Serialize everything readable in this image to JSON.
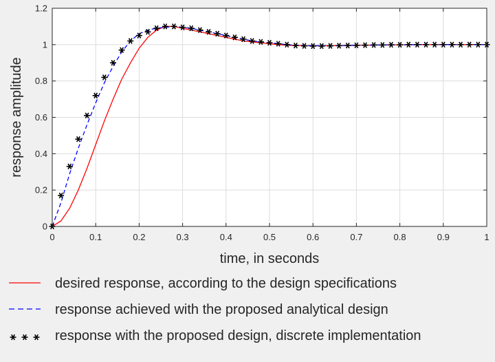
{
  "chart_data": {
    "type": "line",
    "xlabel": "time, in seconds",
    "ylabel": "response amplitude",
    "xlim": [
      0,
      1
    ],
    "ylim": [
      0,
      1.2
    ],
    "xticks": [
      "0",
      "0.1",
      "0.2",
      "0.3",
      "0.4",
      "0.5",
      "0.6",
      "0.7",
      "0.8",
      "0.9",
      "1"
    ],
    "yticks": [
      "0",
      "0.2",
      "0.4",
      "0.6",
      "0.8",
      "1",
      "1.2"
    ],
    "grid": true,
    "legend_position": "below",
    "series": [
      {
        "name": "desired response, according to the design specifications",
        "style": "solid",
        "color": "#ff0000",
        "x": [
          0,
          0.02,
          0.04,
          0.06,
          0.08,
          0.1,
          0.12,
          0.14,
          0.16,
          0.18,
          0.2,
          0.22,
          0.24,
          0.26,
          0.28,
          0.3,
          0.32,
          0.34,
          0.36,
          0.38,
          0.4,
          0.42,
          0.44,
          0.46,
          0.48,
          0.5,
          0.52,
          0.54,
          0.56,
          0.58,
          0.6,
          0.65,
          0.7,
          0.75,
          0.8,
          0.85,
          0.9,
          0.95,
          1.0
        ],
        "y": [
          0,
          0.03,
          0.1,
          0.2,
          0.32,
          0.45,
          0.58,
          0.7,
          0.81,
          0.9,
          0.98,
          1.04,
          1.08,
          1.1,
          1.1,
          1.09,
          1.08,
          1.07,
          1.06,
          1.05,
          1.04,
          1.03,
          1.02,
          1.015,
          1.01,
          1.005,
          1.0,
          0.997,
          0.995,
          0.994,
          0.993,
          0.994,
          0.996,
          0.998,
          0.999,
          1.0,
          1.0,
          1.0,
          1.0
        ]
      },
      {
        "name": "response achieved with the proposed analytical design",
        "style": "dashed",
        "color": "#0000ff",
        "x": [
          0,
          0.02,
          0.04,
          0.06,
          0.08,
          0.1,
          0.12,
          0.14,
          0.16,
          0.18,
          0.2,
          0.22,
          0.24,
          0.26,
          0.28,
          0.3,
          0.32,
          0.34,
          0.36,
          0.38,
          0.4,
          0.42,
          0.44,
          0.46,
          0.48,
          0.5,
          0.52,
          0.54,
          0.56,
          0.58,
          0.6,
          0.65,
          0.7,
          0.75,
          0.8,
          0.85,
          0.9,
          0.95,
          1.0
        ],
        "y": [
          0,
          0.13,
          0.29,
          0.43,
          0.56,
          0.68,
          0.79,
          0.88,
          0.96,
          1.02,
          1.06,
          1.08,
          1.09,
          1.095,
          1.1,
          1.095,
          1.09,
          1.08,
          1.07,
          1.06,
          1.05,
          1.04,
          1.03,
          1.02,
          1.015,
          1.01,
          1.005,
          1.0,
          0.997,
          0.995,
          0.994,
          0.994,
          0.996,
          0.998,
          0.999,
          1.0,
          1.0,
          1.0,
          1.0
        ]
      },
      {
        "name": "response with the proposed design, discrete implementation",
        "style": "markers",
        "color": "#000000",
        "x": [
          0,
          0.02,
          0.04,
          0.06,
          0.08,
          0.1,
          0.12,
          0.14,
          0.16,
          0.18,
          0.2,
          0.22,
          0.24,
          0.26,
          0.28,
          0.3,
          0.32,
          0.34,
          0.36,
          0.38,
          0.4,
          0.42,
          0.44,
          0.46,
          0.48,
          0.5,
          0.52,
          0.54,
          0.56,
          0.58,
          0.6,
          0.62,
          0.64,
          0.66,
          0.68,
          0.7,
          0.72,
          0.74,
          0.76,
          0.78,
          0.8,
          0.82,
          0.84,
          0.86,
          0.88,
          0.9,
          0.92,
          0.94,
          0.96,
          0.98,
          1.0
        ],
        "y": [
          0,
          0.17,
          0.33,
          0.48,
          0.61,
          0.72,
          0.82,
          0.9,
          0.97,
          1.02,
          1.05,
          1.07,
          1.09,
          1.1,
          1.1,
          1.095,
          1.09,
          1.08,
          1.07,
          1.06,
          1.05,
          1.04,
          1.03,
          1.02,
          1.015,
          1.01,
          1.005,
          1.0,
          0.995,
          0.993,
          0.992,
          0.992,
          0.993,
          0.994,
          0.995,
          0.996,
          0.997,
          0.998,
          0.998,
          0.999,
          0.999,
          1.0,
          1.0,
          1.0,
          1.0,
          1.0,
          1.0,
          1.0,
          1.0,
          1.0,
          1.0
        ]
      }
    ]
  }
}
